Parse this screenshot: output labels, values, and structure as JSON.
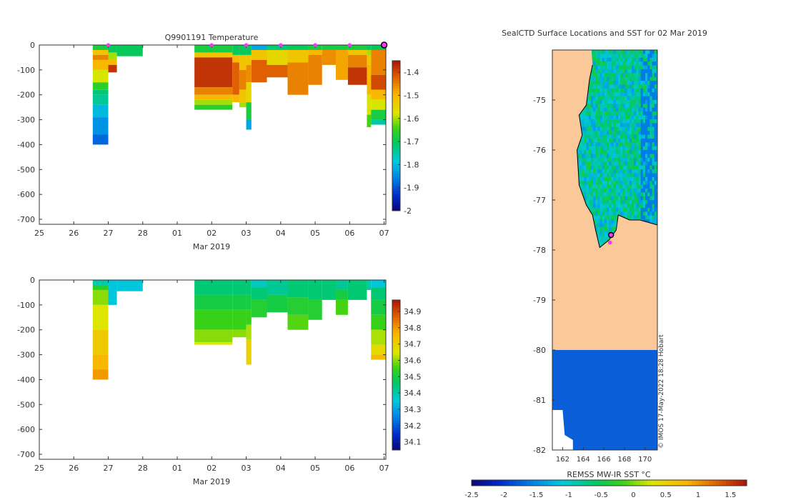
{
  "colors": {
    "land": "#fbc999",
    "ice": "#0a5fd8",
    "marker": "#ff33ff",
    "axis": "#333333"
  },
  "chart_data": [
    {
      "type": "heatmap",
      "title": "Q9901191  Temperature",
      "xlabel": "Mar 2019",
      "x_ticks": [
        "25",
        "26",
        "27",
        "28",
        "01",
        "02",
        "03",
        "04",
        "05",
        "06",
        "07"
      ],
      "xlim": [
        25,
        35.05
      ],
      "ylim": [
        -720,
        0
      ],
      "y_ticks": [
        "0",
        "-100",
        "-200",
        "-300",
        "-400",
        "-500",
        "-600",
        "-700"
      ],
      "clim": [
        -2.0,
        -1.35
      ],
      "colorbar_ticks": [
        "-1.4",
        "-1.5",
        "-1.6",
        "-1.7",
        "-1.8",
        "-1.9",
        "-2"
      ],
      "profile_marks": [
        27,
        30,
        31,
        32,
        33,
        34
      ],
      "current_position": 35,
      "profiles": [
        {
          "x0": 26.55,
          "x1": 27.0,
          "layers": [
            [
              0,
              -1.68
            ],
            [
              20,
              -1.52
            ],
            [
              40,
              -1.45
            ],
            [
              60,
              -1.5
            ],
            [
              100,
              -1.58
            ],
            [
              150,
              -1.66
            ],
            [
              180,
              -1.72
            ],
            [
              200,
              -1.74
            ],
            [
              240,
              -1.8
            ],
            [
              290,
              -1.84
            ],
            [
              360,
              -1.88
            ],
            [
              400,
              null
            ]
          ]
        },
        {
          "x0": 27.0,
          "x1": 27.25,
          "layers": [
            [
              0,
              -1.7
            ],
            [
              30,
              -1.6
            ],
            [
              60,
              -1.5
            ],
            [
              80,
              -1.38
            ],
            [
              110,
              null
            ]
          ]
        },
        {
          "x0": 27.25,
          "x1": 28.0,
          "layers": [
            [
              0,
              -1.7
            ],
            [
              45,
              null
            ]
          ]
        },
        {
          "x0": 29.5,
          "x1": 30.6,
          "layers": [
            [
              0,
              -1.68
            ],
            [
              30,
              -1.52
            ],
            [
              50,
              -1.38
            ],
            [
              170,
              -1.45
            ],
            [
              200,
              -1.5
            ],
            [
              220,
              -1.6
            ],
            [
              240,
              -1.66
            ],
            [
              260,
              null
            ]
          ]
        },
        {
          "x0": 30.6,
          "x1": 30.8,
          "layers": [
            [
              0,
              -1.7
            ],
            [
              40,
              -1.5
            ],
            [
              70,
              -1.42
            ],
            [
              200,
              -1.5
            ],
            [
              230,
              null
            ]
          ]
        },
        {
          "x0": 30.8,
          "x1": 31.0,
          "layers": [
            [
              0,
              -1.7
            ],
            [
              40,
              -1.52
            ],
            [
              100,
              -1.45
            ],
            [
              180,
              -1.52
            ],
            [
              230,
              -1.6
            ],
            [
              250,
              null
            ]
          ]
        },
        {
          "x0": 31.0,
          "x1": 31.15,
          "layers": [
            [
              0,
              -1.7
            ],
            [
              40,
              -1.52
            ],
            [
              80,
              -1.46
            ],
            [
              150,
              -1.55
            ],
            [
              230,
              -1.68
            ],
            [
              300,
              -1.82
            ],
            [
              340,
              null
            ]
          ]
        },
        {
          "x0": 31.15,
          "x1": 31.6,
          "layers": [
            [
              0,
              -1.82
            ],
            [
              20,
              -1.52
            ],
            [
              60,
              -1.42
            ],
            [
              150,
              null
            ]
          ]
        },
        {
          "x0": 31.6,
          "x1": 32.2,
          "layers": [
            [
              0,
              -1.72
            ],
            [
              20,
              -1.55
            ],
            [
              80,
              -1.42
            ],
            [
              130,
              null
            ]
          ]
        },
        {
          "x0": 32.2,
          "x1": 32.8,
          "layers": [
            [
              0,
              -1.7
            ],
            [
              20,
              -1.52
            ],
            [
              70,
              -1.45
            ],
            [
              200,
              null
            ]
          ]
        },
        {
          "x0": 32.8,
          "x1": 33.2,
          "layers": [
            [
              0,
              -1.68
            ],
            [
              20,
              -1.5
            ],
            [
              40,
              -1.45
            ],
            [
              160,
              null
            ]
          ]
        },
        {
          "x0": 33.2,
          "x1": 33.6,
          "layers": [
            [
              0,
              -1.68
            ],
            [
              20,
              -1.46
            ],
            [
              80,
              null
            ]
          ]
        },
        {
          "x0": 33.6,
          "x1": 33.95,
          "layers": [
            [
              0,
              -1.68
            ],
            [
              20,
              -1.48
            ],
            [
              140,
              null
            ]
          ]
        },
        {
          "x0": 33.95,
          "x1": 34.5,
          "layers": [
            [
              0,
              -1.68
            ],
            [
              20,
              -1.52
            ],
            [
              40,
              -1.45
            ],
            [
              90,
              -1.38
            ],
            [
              160,
              null
            ]
          ]
        },
        {
          "x0": 34.5,
          "x1": 34.62,
          "layers": [
            [
              0,
              -1.7
            ],
            [
              20,
              -1.6
            ],
            [
              40,
              -1.52
            ],
            [
              80,
              -1.5
            ],
            [
              200,
              -1.58
            ],
            [
              280,
              -1.64
            ],
            [
              330,
              null
            ]
          ]
        },
        {
          "x0": 34.62,
          "x1": 35.05,
          "layers": [
            [
              0,
              -1.7
            ],
            [
              20,
              -1.45
            ],
            [
              120,
              -1.4
            ],
            [
              180,
              -1.5
            ],
            [
              220,
              -1.58
            ],
            [
              260,
              -1.68
            ],
            [
              300,
              -1.75
            ],
            [
              320,
              null
            ]
          ]
        }
      ]
    },
    {
      "type": "heatmap",
      "title": "",
      "xlabel": "Mar 2019",
      "x_ticks": [
        "25",
        "26",
        "27",
        "28",
        "01",
        "02",
        "03",
        "04",
        "05",
        "06",
        "07"
      ],
      "xlim": [
        25,
        35.05
      ],
      "ylim": [
        -720,
        0
      ],
      "y_ticks": [
        "0",
        "-100",
        "-200",
        "-300",
        "-400",
        "-500",
        "-600",
        "-700"
      ],
      "clim": [
        34.05,
        34.97
      ],
      "colorbar_ticks": [
        "34.9",
        "34.8",
        "34.7",
        "34.6",
        "34.5",
        "34.4",
        "34.3",
        "34.2",
        "34.1"
      ],
      "profiles": [
        {
          "x0": 26.55,
          "x1": 27.0,
          "layers": [
            [
              0,
              34.4
            ],
            [
              20,
              34.52
            ],
            [
              40,
              34.6
            ],
            [
              100,
              34.65
            ],
            [
              200,
              34.72
            ],
            [
              300,
              34.76
            ],
            [
              360,
              34.8
            ],
            [
              400,
              null
            ]
          ]
        },
        {
          "x0": 27.0,
          "x1": 27.25,
          "layers": [
            [
              0,
              34.35
            ],
            [
              100,
              null
            ]
          ]
        },
        {
          "x0": 27.25,
          "x1": 28.0,
          "layers": [
            [
              0,
              34.35
            ],
            [
              45,
              null
            ]
          ]
        },
        {
          "x0": 29.5,
          "x1": 30.6,
          "layers": [
            [
              0,
              34.45
            ],
            [
              60,
              34.5
            ],
            [
              120,
              34.55
            ],
            [
              200,
              34.6
            ],
            [
              250,
              34.65
            ],
            [
              260,
              null
            ]
          ]
        },
        {
          "x0": 30.6,
          "x1": 31.0,
          "layers": [
            [
              0,
              34.45
            ],
            [
              60,
              34.5
            ],
            [
              120,
              34.55
            ],
            [
              200,
              34.6
            ],
            [
              230,
              null
            ]
          ]
        },
        {
          "x0": 31.0,
          "x1": 31.15,
          "layers": [
            [
              0,
              34.45
            ],
            [
              60,
              34.5
            ],
            [
              120,
              34.55
            ],
            [
              180,
              34.62
            ],
            [
              240,
              34.7
            ],
            [
              340,
              null
            ]
          ]
        },
        {
          "x0": 31.15,
          "x1": 31.6,
          "layers": [
            [
              0,
              34.38
            ],
            [
              30,
              34.45
            ],
            [
              80,
              34.52
            ],
            [
              150,
              null
            ]
          ]
        },
        {
          "x0": 31.6,
          "x1": 32.2,
          "layers": [
            [
              0,
              34.42
            ],
            [
              60,
              34.5
            ],
            [
              130,
              null
            ]
          ]
        },
        {
          "x0": 32.2,
          "x1": 32.8,
          "layers": [
            [
              0,
              34.45
            ],
            [
              70,
              34.52
            ],
            [
              140,
              34.57
            ],
            [
              200,
              null
            ]
          ]
        },
        {
          "x0": 32.8,
          "x1": 33.2,
          "layers": [
            [
              0,
              34.45
            ],
            [
              80,
              34.52
            ],
            [
              160,
              null
            ]
          ]
        },
        {
          "x0": 33.2,
          "x1": 33.6,
          "layers": [
            [
              0,
              34.45
            ],
            [
              80,
              null
            ]
          ]
        },
        {
          "x0": 33.6,
          "x1": 33.95,
          "layers": [
            [
              0,
              34.42
            ],
            [
              40,
              34.5
            ],
            [
              80,
              34.56
            ],
            [
              140,
              null
            ]
          ]
        },
        {
          "x0": 33.95,
          "x1": 34.5,
          "layers": [
            [
              0,
              34.45
            ],
            [
              80,
              null
            ]
          ]
        },
        {
          "x0": 34.5,
          "x1": 34.62,
          "layers": [
            [
              0,
              34.4
            ],
            [
              40,
              null
            ]
          ]
        },
        {
          "x0": 34.62,
          "x1": 35.05,
          "layers": [
            [
              0,
              34.35
            ],
            [
              30,
              34.45
            ],
            [
              80,
              34.5
            ],
            [
              140,
              34.55
            ],
            [
              200,
              34.62
            ],
            [
              260,
              34.68
            ],
            [
              300,
              34.75
            ],
            [
              320,
              null
            ]
          ]
        }
      ]
    },
    {
      "type": "heatmap",
      "title": "SealCTD Surface Locations and SST for 02 Mar 2019",
      "xlim": [
        161,
        171.2
      ],
      "ylim": [
        -82,
        -74
      ],
      "x_ticks": [
        "162",
        "164",
        "166",
        "168",
        "170"
      ],
      "y_ticks": [
        "-75",
        "-76",
        "-77",
        "-78",
        "-79",
        "-80",
        "-81",
        "-82"
      ],
      "colorbar_label": "REMSS MW-IR SST °C",
      "colorbar_ticks": [
        "-2.5",
        "-2",
        "-1.5",
        "-1",
        "-0.5",
        "0",
        "0.5",
        "1",
        "1.5"
      ],
      "clim": [
        -2.5,
        1.75
      ],
      "sea_sst_range": [
        -1.4,
        -0.4
      ],
      "ice_edge_lat": -80,
      "positions": [
        [
          166.7,
          -77.7
        ],
        [
          166.6,
          -77.85
        ]
      ],
      "credit": "© IMOS 17-May-2022 18:28 Hobart"
    }
  ]
}
